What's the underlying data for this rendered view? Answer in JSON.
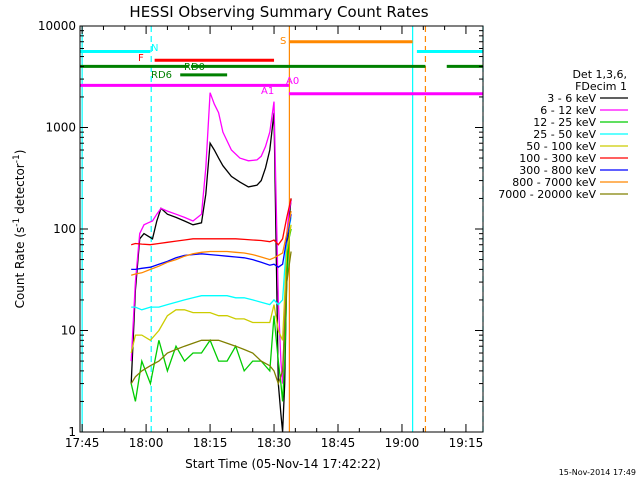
{
  "chart_data": {
    "type": "line",
    "title": "HESSI Observing Summary Count Rates",
    "xlabel": "Start Time (05-Nov-14 17:42:22)",
    "ylabel_main": "Count Rate (s",
    "ylabel_sup1": "-1",
    "ylabel_mid": " detector",
    "ylabel_sup2": "-1",
    "ylabel_end": ")",
    "xlim_minutes": [
      -0.5,
      94
    ],
    "ylim": [
      1,
      10000
    ],
    "yscale": "log",
    "x_ticks": [
      {
        "label": "17:45",
        "min": 0
      },
      {
        "label": "18:00",
        "min": 15
      },
      {
        "label": "18:15",
        "min": 30
      },
      {
        "label": "18:30",
        "min": 45
      },
      {
        "label": "18:45",
        "min": 60
      },
      {
        "label": "19:00",
        "min": 75
      },
      {
        "label": "19:15",
        "min": 90
      }
    ],
    "y_ticks": [
      {
        "label": "1",
        "value": 1
      },
      {
        "label": "10",
        "value": 10
      },
      {
        "label": "100",
        "value": 100
      },
      {
        "label": "1000",
        "value": 1000
      },
      {
        "label": "10000",
        "value": 10000
      }
    ],
    "legend_header": [
      "Det 1,3,6,",
      "FDecim 1"
    ],
    "series": [
      {
        "name": "3 - 6 keV",
        "color": "#000000",
        "x": [
          11.5,
          12.5,
          13.5,
          14.5,
          15.5,
          16.5,
          17.5,
          18.5,
          20,
          22,
          24,
          26,
          28,
          29,
          30,
          31,
          32,
          33,
          35,
          37,
          39,
          41,
          42,
          43,
          44,
          45,
          46,
          46.6,
          47,
          47.5,
          48,
          48.5,
          49
        ],
        "y": [
          3,
          25,
          80,
          90,
          85,
          80,
          120,
          160,
          140,
          130,
          120,
          110,
          115,
          220,
          700,
          600,
          500,
          420,
          330,
          290,
          260,
          270,
          300,
          400,
          600,
          1400,
          3,
          1.5,
          1,
          3,
          40,
          120,
          200
        ]
      },
      {
        "name": "6 - 12 keV",
        "color": "#ff00ff",
        "x": [
          11.5,
          12.5,
          13.5,
          14.5,
          15.5,
          16.5,
          17.5,
          18.5,
          20,
          22,
          24,
          26,
          28,
          29,
          30,
          31,
          32,
          33,
          35,
          37,
          39,
          41,
          42,
          43,
          44,
          45,
          46,
          46.6,
          47,
          47.5,
          48,
          48.5,
          49
        ],
        "y": [
          5,
          30,
          90,
          110,
          115,
          120,
          140,
          160,
          150,
          140,
          130,
          120,
          140,
          400,
          2200,
          1700,
          1400,
          900,
          600,
          500,
          470,
          480,
          520,
          650,
          900,
          1800,
          20,
          5,
          3,
          15,
          90,
          150,
          190
        ]
      },
      {
        "name": "12 - 25 keV",
        "color": "#00cc00",
        "x": [
          11.5,
          12.5,
          14,
          16,
          18,
          20,
          22,
          24,
          26,
          28,
          30,
          32,
          34,
          36,
          38,
          40,
          42,
          44,
          45,
          46,
          46.6,
          47,
          47.5,
          48,
          48.5,
          49
        ],
        "y": [
          3,
          2,
          5,
          3,
          8,
          4,
          7,
          5,
          6,
          6,
          8,
          5,
          5,
          7,
          4,
          5,
          5,
          4,
          14,
          5,
          3,
          2,
          5,
          30,
          80,
          100
        ]
      },
      {
        "name": "25 - 50 keV",
        "color": "#00ffff",
        "x": [
          11.5,
          12.5,
          14,
          16,
          18,
          20,
          22,
          24,
          26,
          28,
          30,
          32,
          34,
          36,
          38,
          40,
          42,
          44,
          45,
          46,
          47,
          48,
          49
        ],
        "y": [
          17,
          17,
          16,
          17,
          17,
          18,
          19,
          20,
          21,
          22,
          22,
          22,
          22,
          21,
          21,
          20,
          19,
          18,
          20,
          18,
          20,
          80,
          130
        ]
      },
      {
        "name": "50 - 100 keV",
        "color": "#cccc00",
        "x": [
          11.5,
          12.5,
          14,
          16,
          18,
          20,
          22,
          24,
          26,
          28,
          30,
          32,
          34,
          36,
          38,
          40,
          42,
          44,
          45,
          46,
          47,
          48,
          49
        ],
        "y": [
          6,
          9,
          9,
          8,
          10,
          14,
          16,
          16,
          15,
          15,
          15,
          14,
          14,
          13,
          13,
          12,
          12,
          12,
          18,
          10,
          8,
          60,
          110
        ]
      },
      {
        "name": "100 - 300 keV",
        "color": "#ff0000",
        "x": [
          11.5,
          12.5,
          14,
          16,
          18,
          20,
          22,
          24,
          26,
          28,
          30,
          32,
          34,
          36,
          38,
          40,
          42,
          44,
          45,
          46,
          47,
          48,
          49
        ],
        "y": [
          70,
          72,
          71,
          70,
          72,
          74,
          76,
          78,
          80,
          80,
          80,
          80,
          80,
          80,
          79,
          78,
          77,
          75,
          78,
          70,
          80,
          130,
          200
        ]
      },
      {
        "name": "300 - 800 keV",
        "color": "#0000ff",
        "x": [
          11.5,
          12.5,
          14,
          16,
          18,
          20,
          22,
          24,
          26,
          28,
          30,
          32,
          34,
          36,
          38,
          40,
          42,
          44,
          45,
          46,
          47,
          48,
          49
        ],
        "y": [
          40,
          40,
          41,
          42,
          45,
          48,
          52,
          55,
          56,
          57,
          56,
          55,
          54,
          53,
          52,
          50,
          47,
          44,
          45,
          42,
          45,
          80,
          140
        ]
      },
      {
        "name": "800 - 7000 keV",
        "color": "#ff8800",
        "x": [
          11.5,
          12.5,
          14,
          16,
          18,
          20,
          22,
          24,
          26,
          28,
          30,
          32,
          34,
          36,
          38,
          40,
          42,
          44,
          45,
          46,
          47,
          48,
          49
        ],
        "y": [
          35,
          36,
          37,
          40,
          43,
          47,
          50,
          54,
          57,
          59,
          60,
          60,
          60,
          59,
          58,
          56,
          53,
          50,
          52,
          55,
          58,
          90,
          150
        ]
      },
      {
        "name": "7000 - 20000 keV",
        "color": "#808000",
        "x": [
          11.5,
          12.5,
          14,
          16,
          18,
          20,
          22,
          24,
          26,
          28,
          30,
          32,
          34,
          36,
          38,
          40,
          42,
          44,
          45,
          46,
          47,
          48,
          49
        ],
        "y": [
          3,
          3.5,
          4,
          4.5,
          5,
          6,
          6.5,
          7,
          7.5,
          8,
          8,
          8,
          7.5,
          7,
          6.5,
          6,
          5,
          4.5,
          4,
          3,
          4,
          30,
          60
        ]
      }
    ],
    "flags": [
      {
        "name": "S",
        "label_color": "#ff8800",
        "y": 7000,
        "segments": [
          [
            48.5,
            77.5
          ]
        ]
      },
      {
        "name": "N",
        "label_color": "#00ffff",
        "y": 5600,
        "segments": [
          [
            -0.5,
            16
          ],
          [
            78.5,
            94
          ]
        ]
      },
      {
        "name": "F",
        "label_color": "#ff0000",
        "y": 4600,
        "segments": [
          [
            17,
            45
          ]
        ]
      },
      {
        "name": "RD0",
        "label_color": "#008000",
        "y": 4000,
        "segments": [
          [
            -0.5,
            25
          ],
          [
            25.5,
            48.5
          ],
          [
            48.5,
            80.5
          ],
          [
            85.5,
            94
          ]
        ]
      },
      {
        "name": "RD6",
        "label_color": "#008000",
        "y": 3300,
        "segments": [
          [
            23,
            34
          ]
        ]
      },
      {
        "name": "A0",
        "label_color": "#ff00ff",
        "y": 2600,
        "segments": [
          [
            -0.5,
            48.5
          ]
        ]
      },
      {
        "name": "A1",
        "label_color": "#ff00ff",
        "y": 2150,
        "segments": [
          [
            48.5,
            94
          ]
        ]
      }
    ],
    "vlines": [
      {
        "x": 0,
        "color": "#00ffff",
        "style": "solid"
      },
      {
        "x": 16.2,
        "color": "#00ffff",
        "style": "dashed"
      },
      {
        "x": 48.6,
        "color": "#ff8800",
        "style": "solid"
      },
      {
        "x": 77.5,
        "color": "#00ffff",
        "style": "solid"
      },
      {
        "x": 80.5,
        "color": "#ff8800",
        "style": "dashed"
      },
      {
        "x": 94,
        "color": "#00ffff",
        "style": "dashed"
      }
    ],
    "grid": false
  },
  "footer_timestamp": "15-Nov-2014 17:49"
}
